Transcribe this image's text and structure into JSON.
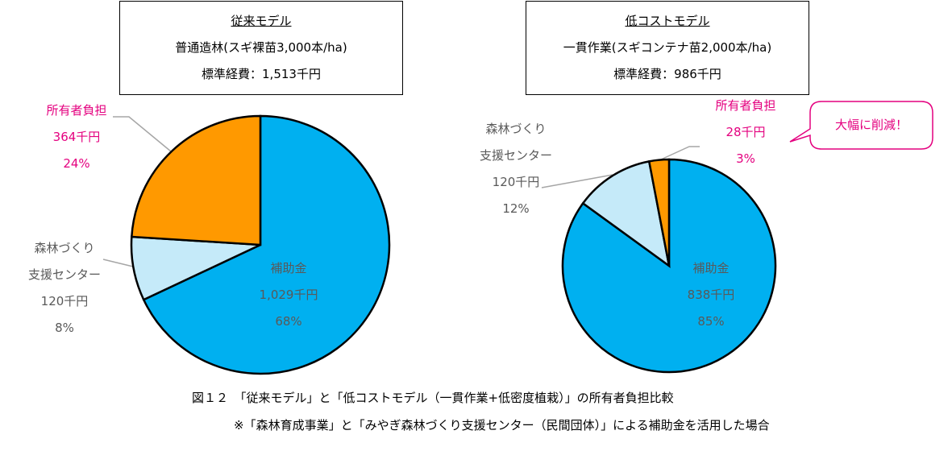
{
  "caption": "図１２　「従来モデル」と「低コストモデル（一貫作業+低密度植栽）」の所有者負担比較",
  "note": "※「森林育成事業」と「みやぎ森林づくり支援センター（民間団体）」による補助金を活用した場合",
  "chart_data": [
    {
      "type": "pie",
      "box": [
        "従来モデル",
        "普通造林(スギ裸苗3,000本/ha)",
        "標準経費：1,513千円"
      ],
      "categories": [
        "補助金",
        "森林づくり\n支援センター",
        "所有者負担"
      ],
      "amount_labels": [
        "1,029千円",
        "120千円",
        "364千円"
      ],
      "values": [
        68,
        8,
        24
      ],
      "value_labels": [
        "68%",
        "8%",
        "24%"
      ],
      "colors": [
        "#00b0f0",
        "#c5eaf9",
        "#ff9900"
      ]
    },
    {
      "type": "pie",
      "box": [
        "低コストモデル",
        "一貫作業(スギコンテナ苗2,000本/ha)",
        "標準経費：986千円"
      ],
      "categories": [
        "補助金",
        "森林づくり\n支援センター",
        "所有者負担"
      ],
      "amount_labels": [
        "838千円",
        "120千円",
        "28千円"
      ],
      "values": [
        85,
        12,
        3
      ],
      "value_labels": [
        "85%",
        "12%",
        "3%"
      ],
      "colors": [
        "#00b0f0",
        "#c5eaf9",
        "#ff9900"
      ],
      "annotation": "大幅に削減！"
    }
  ]
}
